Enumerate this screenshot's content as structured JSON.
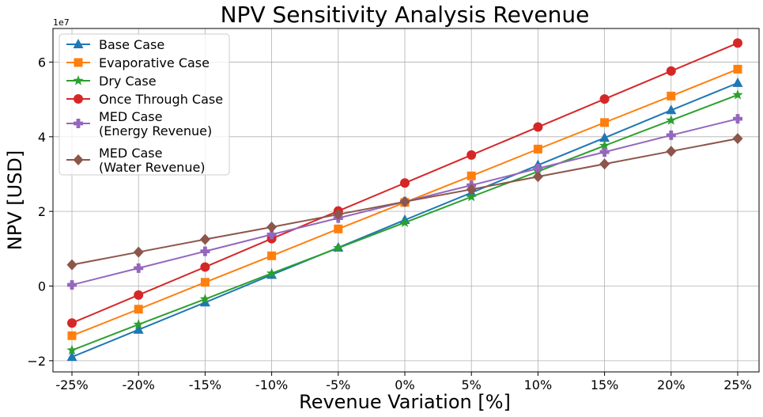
{
  "chart_data": {
    "type": "line",
    "title": "NPV Sensitivity Analysis Revenue",
    "xlabel": "Revenue Variation [%]",
    "ylabel": "NPV [USD]",
    "y_offset_label": "1e7",
    "categories": [
      "-25%",
      "-20%",
      "-15%",
      "-10%",
      "-5%",
      "0%",
      "5%",
      "10%",
      "15%",
      "20%",
      "25%"
    ],
    "yticks": [
      -2,
      0,
      2,
      4,
      6
    ],
    "ylim": [
      -2.3,
      6.9
    ],
    "y_scale": 10000000,
    "grid": true,
    "legend_position": "upper-left",
    "series": [
      {
        "name": "Base Case",
        "color": "#1f77b4",
        "marker": "triangle",
        "values": [
          -1.9,
          -1.17,
          -0.44,
          0.3,
          1.03,
          1.77,
          2.5,
          3.24,
          3.97,
          4.71,
          5.44
        ]
      },
      {
        "name": "Evaporative Case",
        "color": "#ff7f0e",
        "marker": "square",
        "values": [
          -1.33,
          -0.62,
          0.1,
          0.81,
          1.53,
          2.24,
          2.95,
          3.67,
          4.38,
          5.09,
          5.81
        ]
      },
      {
        "name": "Dry Case",
        "color": "#2ca02c",
        "marker": "star",
        "values": [
          -1.72,
          -1.03,
          -0.35,
          0.34,
          1.02,
          1.7,
          2.39,
          3.07,
          3.76,
          4.44,
          5.12
        ]
      },
      {
        "name": "Once Through Case",
        "color": "#d62728",
        "marker": "circle",
        "values": [
          -0.99,
          -0.24,
          0.51,
          1.27,
          2.01,
          2.76,
          3.51,
          4.26,
          5.01,
          5.76,
          6.51
        ]
      },
      {
        "name": "MED Case\n(Energy Revenue)",
        "color": "#9467bd",
        "marker": "plus",
        "values": [
          0.03,
          0.48,
          0.93,
          1.38,
          1.82,
          2.26,
          2.7,
          3.15,
          3.59,
          4.04,
          4.48
        ]
      },
      {
        "name": "MED Case\n(Water Revenue)",
        "color": "#8c564b",
        "marker": "diamond",
        "values": [
          0.57,
          0.91,
          1.25,
          1.58,
          1.92,
          2.26,
          2.59,
          2.93,
          3.27,
          3.61,
          3.95
        ]
      }
    ]
  }
}
